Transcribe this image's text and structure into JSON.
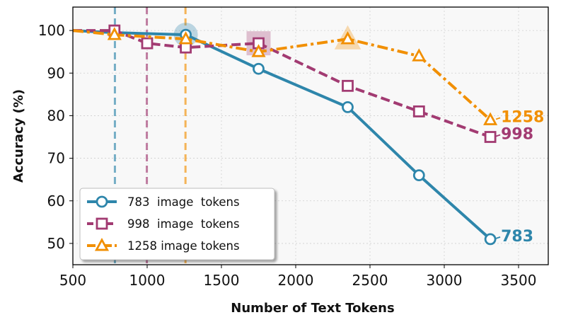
{
  "chart_data": {
    "type": "line",
    "xlabel": "Number of Text Tokens",
    "ylabel": "Accuracy (%)",
    "xlim": [
      500,
      3700
    ],
    "ylim": [
      45,
      105.5
    ],
    "x_ticks": [
      "500",
      "1000",
      "1500",
      "2000",
      "2500",
      "3000",
      "3500"
    ],
    "y_ticks": [
      "50",
      "60",
      "70",
      "80",
      "90",
      "100"
    ],
    "grid": true,
    "legend_position": "lower-left",
    "series": [
      {
        "name": "783  image  tokens",
        "end_label": "783",
        "color": "#2e86ab",
        "marker": "circle",
        "line_style": "solid",
        "x": [
          500,
          780,
          1260,
          1750,
          2350,
          2830,
          3310
        ],
        "y": [
          100,
          99.5,
          99,
          91,
          82,
          66,
          51
        ],
        "threshold_x": 783,
        "highlight_index": 2
      },
      {
        "name": "998  image  tokens",
        "end_label": "998",
        "color": "#a23b72",
        "marker": "square",
        "line_style": "dashed",
        "x": [
          500,
          780,
          1000,
          1260,
          1750,
          2350,
          2830,
          3310
        ],
        "y": [
          100,
          100,
          97,
          96,
          97,
          87,
          81,
          75
        ],
        "threshold_x": 998,
        "highlight_index": 4
      },
      {
        "name": "1258 image tokens",
        "end_label": "1258",
        "color": "#f18f01",
        "marker": "triangle",
        "line_style": "dashdot",
        "x": [
          500,
          780,
          1260,
          1750,
          2350,
          2830,
          3310
        ],
        "y": [
          100,
          99,
          98,
          95,
          98,
          94,
          79
        ],
        "threshold_x": 1258,
        "highlight_index": 4
      }
    ]
  }
}
